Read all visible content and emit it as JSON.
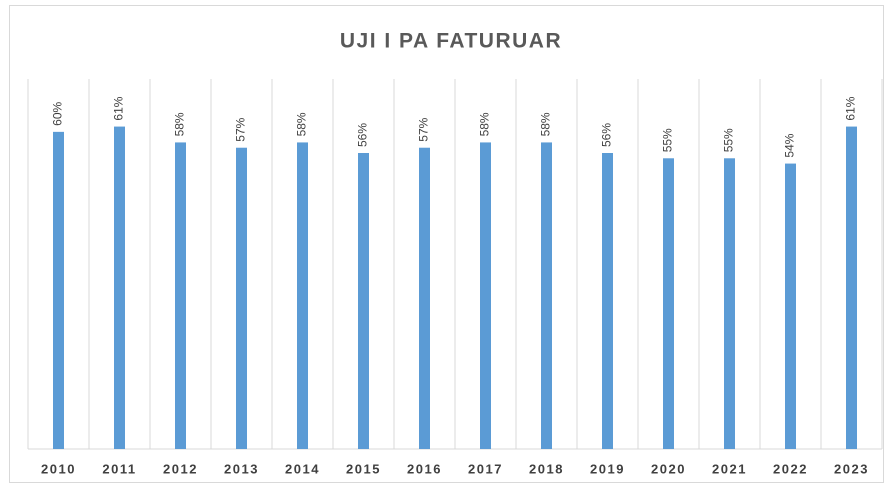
{
  "chart_data": {
    "type": "bar",
    "title": "UJI I PA FATURUAR",
    "categories": [
      "2010",
      "2011",
      "2012",
      "2013",
      "2014",
      "2015",
      "2016",
      "2017",
      "2018",
      "2019",
      "2020",
      "2021",
      "2022",
      "2023"
    ],
    "values": [
      60,
      61,
      58,
      57,
      58,
      56,
      57,
      58,
      58,
      56,
      55,
      55,
      54,
      61
    ],
    "value_labels": [
      "60%",
      "61%",
      "58%",
      "57%",
      "58%",
      "56%",
      "57%",
      "58%",
      "58%",
      "56%",
      "55%",
      "55%",
      "54%",
      "61%"
    ],
    "color": "#5b9bd5",
    "ylim": [
      0,
      70
    ]
  }
}
